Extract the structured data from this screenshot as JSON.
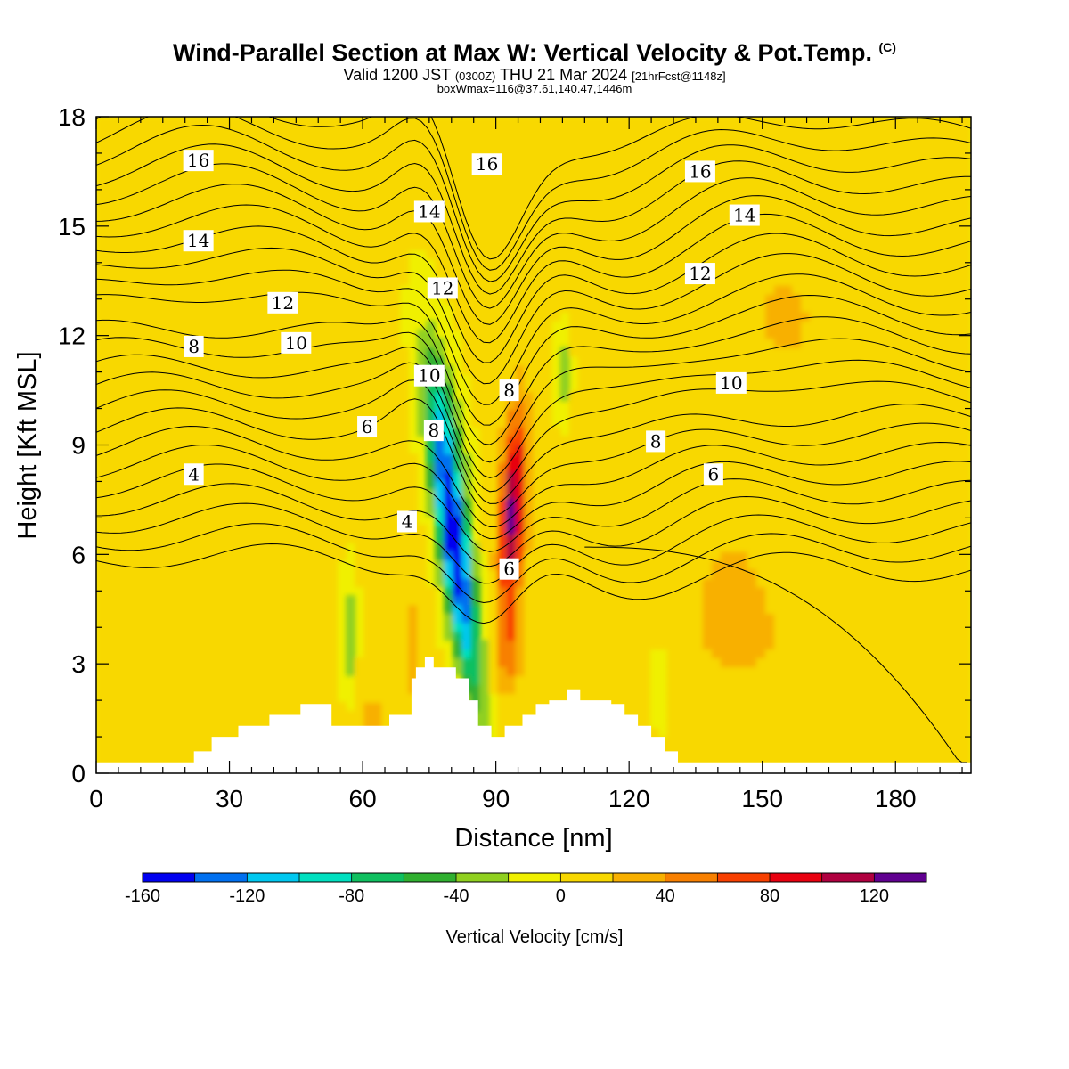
{
  "title": {
    "main": "Wind-Parallel Section at Max W: Vertical Velocity & Pot.Temp.",
    "mark": "(C)",
    "valid_a": "Valid 1200 JST",
    "valid_b": "(0300Z)",
    "valid_c": "THU 21 Mar 2024",
    "valid_d": "[21hrFcst@1148z]",
    "box": "boxWmax=116@37.61,140.47,1446m"
  },
  "chart_data": {
    "type": "heatmap",
    "xlabel": "Distance [nm]",
    "ylabel": "Height [Kft MSL]",
    "xlim": [
      0,
      197
    ],
    "ylim": [
      0,
      18
    ],
    "x_ticks": [
      0,
      30,
      60,
      90,
      120,
      150,
      180
    ],
    "y_ticks": [
      0,
      3,
      6,
      9,
      12,
      15,
      18
    ],
    "colorbar": {
      "label": "Vertical Velocity [cm/s]",
      "bounds": [
        -160,
        -140,
        -120,
        -100,
        -80,
        -60,
        -40,
        -20,
        0,
        20,
        40,
        60,
        80,
        100,
        120,
        140
      ],
      "colors": [
        "#0000f0",
        "#0070f0",
        "#00c8f0",
        "#00e0c0",
        "#10c060",
        "#30b030",
        "#90d020",
        "#f0f000",
        "#f8d800",
        "#f8b000",
        "#f88000",
        "#f84000",
        "#e80010",
        "#b00040",
        "#600090"
      ],
      "tick_values": [
        -160,
        -120,
        -80,
        -40,
        0,
        40,
        80,
        120
      ]
    },
    "velocity_features": [
      {
        "kind": "updraft",
        "center": [
          94,
          7.5
        ],
        "peak": 116
      },
      {
        "kind": "downdraft",
        "center": [
          81,
          6.0
        ],
        "peak": -160
      }
    ],
    "terrain": {
      "x": [
        0,
        22,
        22,
        26,
        26,
        32,
        32,
        39,
        39,
        46,
        46,
        53,
        53,
        59,
        59,
        66,
        66,
        71,
        71,
        72,
        72,
        74,
        74,
        76,
        76,
        81,
        81,
        84,
        84,
        86,
        86,
        89,
        89,
        92,
        92,
        96,
        96,
        99,
        99,
        102,
        102,
        106,
        106,
        109,
        109,
        116,
        116,
        119,
        119,
        122,
        122,
        125,
        125,
        128,
        128,
        131,
        131,
        197
      ],
      "y": [
        0.3,
        0.3,
        0.6,
        0.6,
        1.0,
        1.0,
        1.3,
        1.3,
        1.6,
        1.6,
        1.9,
        1.9,
        1.3,
        1.3,
        1.3,
        1.3,
        1.6,
        1.6,
        2.6,
        2.6,
        2.9,
        2.9,
        3.2,
        3.2,
        2.9,
        2.9,
        2.6,
        2.6,
        2.0,
        2.0,
        1.3,
        1.3,
        1.0,
        1.0,
        1.3,
        1.3,
        1.6,
        1.6,
        1.9,
        1.9,
        2.0,
        2.0,
        2.3,
        2.3,
        2.0,
        2.0,
        1.9,
        1.9,
        1.6,
        1.6,
        1.3,
        1.3,
        1.0,
        1.0,
        0.6,
        0.6,
        0.3,
        0.3
      ]
    },
    "contour_labels": [
      {
        "value": "16",
        "x": 23,
        "y": 16.8
      },
      {
        "value": "16",
        "x": 88,
        "y": 16.7
      },
      {
        "value": "16",
        "x": 136,
        "y": 16.5
      },
      {
        "value": "14",
        "x": 23,
        "y": 14.6
      },
      {
        "value": "14",
        "x": 75,
        "y": 15.4
      },
      {
        "value": "14",
        "x": 146,
        "y": 15.3
      },
      {
        "value": "12",
        "x": 42,
        "y": 12.9
      },
      {
        "value": "12",
        "x": 78,
        "y": 13.3
      },
      {
        "value": "12",
        "x": 136,
        "y": 13.7
      },
      {
        "value": "10",
        "x": 45,
        "y": 11.8
      },
      {
        "value": "10",
        "x": 75,
        "y": 10.9
      },
      {
        "value": "10",
        "x": 143,
        "y": 10.7
      },
      {
        "value": "8",
        "x": 22,
        "y": 11.7
      },
      {
        "value": "8",
        "x": 76,
        "y": 9.4
      },
      {
        "value": "8",
        "x": 93,
        "y": 10.5
      },
      {
        "value": "8",
        "x": 126,
        "y": 9.1
      },
      {
        "value": "6",
        "x": 61,
        "y": 9.5
      },
      {
        "value": "6",
        "x": 93,
        "y": 5.6
      },
      {
        "value": "6",
        "x": 139,
        "y": 8.2
      },
      {
        "value": "4",
        "x": 22,
        "y": 8.2
      },
      {
        "value": "4",
        "x": 70,
        "y": 6.9
      }
    ]
  }
}
